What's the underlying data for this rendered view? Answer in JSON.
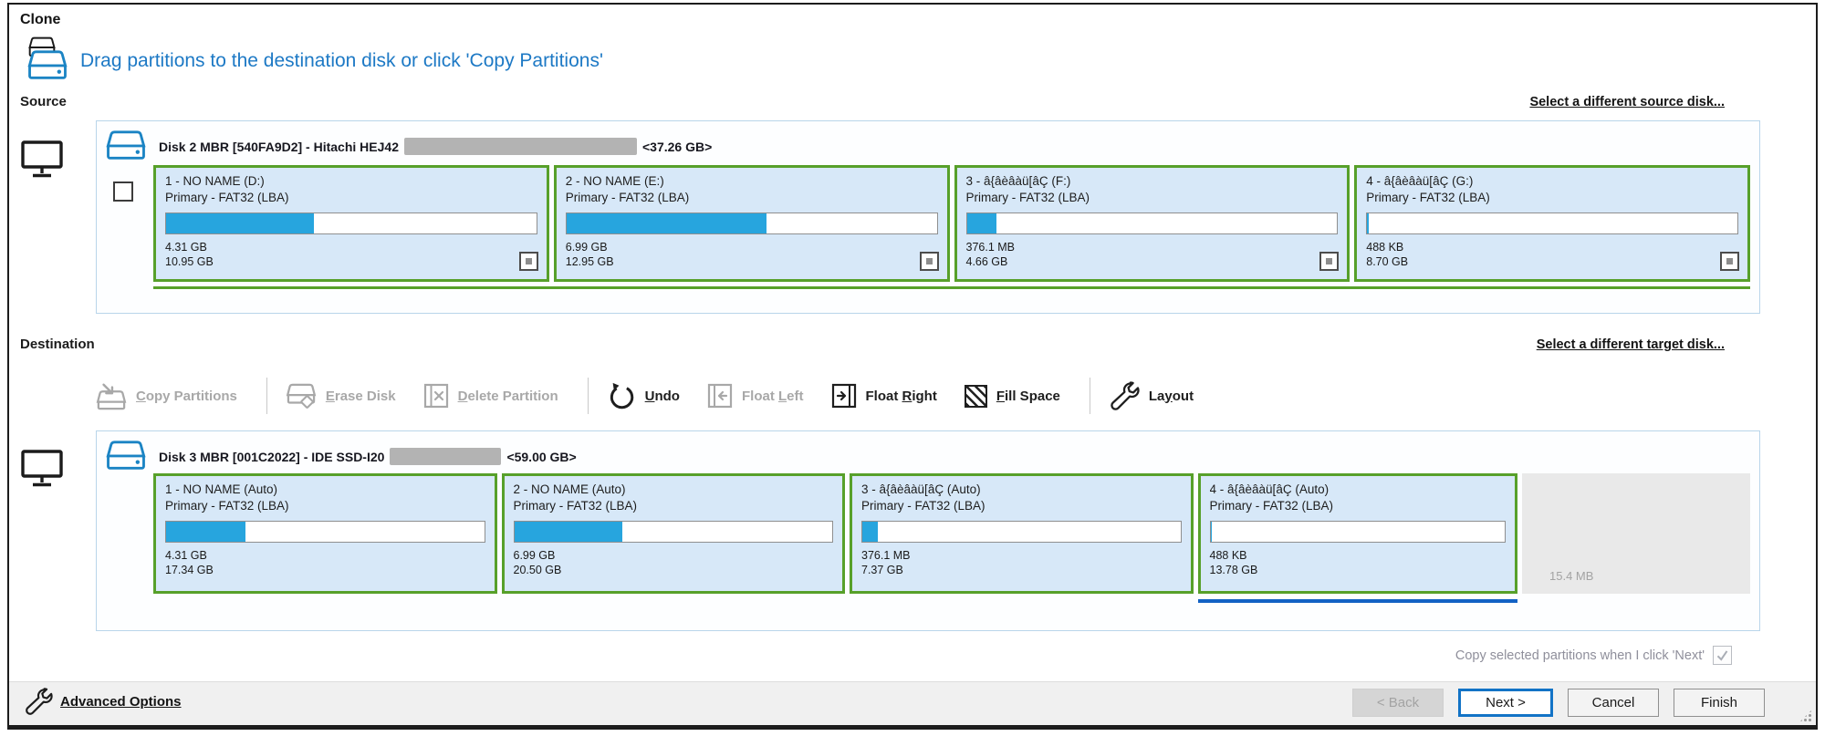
{
  "window": {
    "title": "Clone",
    "instruction": "Drag partitions to the destination disk or click 'Copy Partitions'"
  },
  "source": {
    "label": "Source",
    "select_link": "Select a different source disk...",
    "disk_title": "Disk 2 MBR [540FA9D2] - Hitachi HEJ42",
    "disk_size": "<37.26 GB>",
    "partitions": [
      {
        "title": "1 - NO NAME (D:)",
        "type": "Primary - FAT32 (LBA)",
        "used": "4.31 GB",
        "total": "10.95 GB",
        "used_pct": 40
      },
      {
        "title": "2 - NO NAME (E:)",
        "type": "Primary - FAT32 (LBA)",
        "used": "6.99 GB",
        "total": "12.95 GB",
        "used_pct": 54
      },
      {
        "title": "3 - â{âèâàü[âÇ (F:)",
        "type": "Primary - FAT32 (LBA)",
        "used": "376.1 MB",
        "total": "4.66 GB",
        "used_pct": 8
      },
      {
        "title": "4 - â{âèâàü[âÇ (G:)",
        "type": "Primary - FAT32 (LBA)",
        "used": "488 KB",
        "total": "8.70 GB",
        "used_pct": 0.5
      }
    ]
  },
  "destination": {
    "label": "Destination",
    "select_link": "Select a different target disk...",
    "disk_title": "Disk 3 MBR [001C2022] - IDE SSD-I20",
    "disk_size": "<59.00 GB>",
    "partitions": [
      {
        "title": "1 - NO NAME (Auto)",
        "type": "Primary - FAT32 (LBA)",
        "used": "4.31 GB",
        "total": "17.34 GB",
        "used_pct": 25
      },
      {
        "title": "2 - NO NAME (Auto)",
        "type": "Primary - FAT32 (LBA)",
        "used": "6.99 GB",
        "total": "20.50 GB",
        "used_pct": 34
      },
      {
        "title": "3 - â{âèâàü[âÇ (Auto)",
        "type": "Primary - FAT32 (LBA)",
        "used": "376.1 MB",
        "total": "7.37 GB",
        "used_pct": 5
      },
      {
        "title": "4 - â{âèâàü[âÇ (Auto)",
        "type": "Primary - FAT32 (LBA)",
        "used": "488 KB",
        "total": "13.78 GB",
        "used_pct": 0.5
      }
    ],
    "free_space": "15.4 MB"
  },
  "toolbar": {
    "items": [
      {
        "label": "Copy Partitions",
        "key": "C",
        "disabled": true,
        "icon": "copy-partitions-icon"
      },
      {
        "label": "Erase Disk",
        "key": "E",
        "disabled": true,
        "icon": "erase-disk-icon"
      },
      {
        "label": "Delete Partition",
        "key": "D",
        "disabled": true,
        "icon": "delete-partition-icon"
      },
      {
        "label": "Undo",
        "key": "U",
        "disabled": false,
        "icon": "undo-icon"
      },
      {
        "label": "Float Left",
        "key": "L",
        "disabled": true,
        "icon": "float-left-icon"
      },
      {
        "label": "Float Right",
        "key": "R",
        "disabled": false,
        "icon": "float-right-icon"
      },
      {
        "label": "Fill Space",
        "key": "F",
        "disabled": false,
        "icon": "fill-space-icon"
      },
      {
        "label": "Layout",
        "key": "y",
        "disabled": false,
        "icon": "layout-icon"
      }
    ]
  },
  "footer": {
    "copy_note": "Copy selected partitions when I click 'Next'",
    "copy_note_checked": true,
    "advanced_options": "Advanced Options",
    "buttons": {
      "back": "< Back",
      "next": "Next >",
      "cancel": "Cancel",
      "finish": "Finish"
    }
  },
  "colors": {
    "header_blue": "#1d79c5",
    "partition_border_green": "#57a02a",
    "partition_bg_blue": "#d7e8f8",
    "usage_bar_blue": "#27a5de",
    "selection_line_blue": "#1261c4",
    "disk_icon_blue": "#1b84c4"
  }
}
